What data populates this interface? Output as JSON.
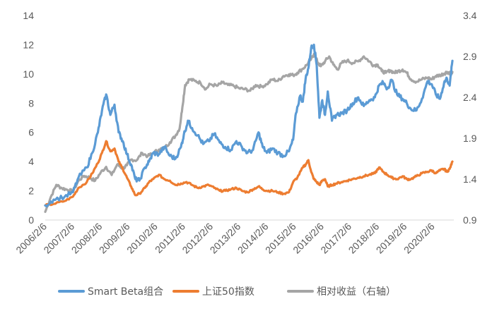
{
  "chart_data": {
    "type": "line",
    "x": [
      "2006/2/6",
      "2007/2/6",
      "2008/2/6",
      "2009/2/6",
      "2010/2/6",
      "2011/2/6",
      "2012/2/6",
      "2013/2/6",
      "2014/2/6",
      "2015/2/6",
      "2016/2/6",
      "2017/2/6",
      "2018/2/6",
      "2019/2/6",
      "2020/2/6"
    ],
    "left_axis": {
      "ylim": [
        0,
        14
      ],
      "ticks": [
        "0",
        "2",
        "4",
        "6",
        "8",
        "10",
        "12",
        "14"
      ]
    },
    "right_axis": {
      "ylim": [
        0.9,
        3.4
      ],
      "ticks": [
        "0.9",
        "1.4",
        "1.9",
        "2.4",
        "2.9",
        "3.4"
      ]
    },
    "grid": false,
    "legend_position": "bottom",
    "series": [
      {
        "name": "Smart Beta组合",
        "color": "#5B9BD5",
        "axis": "left",
        "points": [
          [
            2006.1,
            1.0
          ],
          [
            2006.4,
            1.4
          ],
          [
            2006.8,
            1.6
          ],
          [
            2007.1,
            1.9
          ],
          [
            2007.3,
            2.9
          ],
          [
            2007.6,
            3.6
          ],
          [
            2007.8,
            4.6
          ],
          [
            2008.0,
            6.0
          ],
          [
            2008.15,
            7.5
          ],
          [
            2008.3,
            8.6
          ],
          [
            2008.45,
            7.2
          ],
          [
            2008.6,
            7.9
          ],
          [
            2008.75,
            6.0
          ],
          [
            2008.9,
            5.4
          ],
          [
            2009.05,
            4.5
          ],
          [
            2009.2,
            3.8
          ],
          [
            2009.35,
            2.8
          ],
          [
            2009.5,
            2.7
          ],
          [
            2009.7,
            3.6
          ],
          [
            2009.85,
            4.0
          ],
          [
            2010.0,
            4.6
          ],
          [
            2010.2,
            4.5
          ],
          [
            2010.4,
            5.0
          ],
          [
            2010.6,
            4.4
          ],
          [
            2010.8,
            4.2
          ],
          [
            2011.0,
            5.0
          ],
          [
            2011.1,
            5.8
          ],
          [
            2011.25,
            6.8
          ],
          [
            2011.4,
            6.3
          ],
          [
            2011.6,
            5.8
          ],
          [
            2011.8,
            5.2
          ],
          [
            2012.0,
            5.4
          ],
          [
            2012.2,
            5.9
          ],
          [
            2012.4,
            5.3
          ],
          [
            2012.6,
            5.0
          ],
          [
            2012.8,
            4.8
          ],
          [
            2013.0,
            5.4
          ],
          [
            2013.2,
            5.0
          ],
          [
            2013.4,
            4.6
          ],
          [
            2013.6,
            4.8
          ],
          [
            2013.8,
            6.0
          ],
          [
            2013.95,
            5.0
          ],
          [
            2014.1,
            4.6
          ],
          [
            2014.3,
            4.9
          ],
          [
            2014.5,
            4.6
          ],
          [
            2014.7,
            4.4
          ],
          [
            2014.9,
            4.7
          ],
          [
            2015.05,
            5.5
          ],
          [
            2015.15,
            7.3
          ],
          [
            2015.3,
            8.5
          ],
          [
            2015.4,
            8.1
          ],
          [
            2015.5,
            9.7
          ],
          [
            2015.6,
            10.4
          ],
          [
            2015.7,
            11.8
          ],
          [
            2015.8,
            12.0
          ],
          [
            2015.9,
            10.6
          ],
          [
            2016.0,
            7.0
          ],
          [
            2016.1,
            8.2
          ],
          [
            2016.2,
            7.2
          ],
          [
            2016.3,
            8.8
          ],
          [
            2016.45,
            6.8
          ],
          [
            2016.6,
            7.2
          ],
          [
            2016.8,
            7.3
          ],
          [
            2017.0,
            7.5
          ],
          [
            2017.2,
            8.0
          ],
          [
            2017.4,
            8.4
          ],
          [
            2017.6,
            7.8
          ],
          [
            2017.8,
            8.2
          ],
          [
            2018.0,
            8.4
          ],
          [
            2018.15,
            9.2
          ],
          [
            2018.3,
            9.4
          ],
          [
            2018.45,
            9.0
          ],
          [
            2018.6,
            9.6
          ],
          [
            2018.8,
            8.6
          ],
          [
            2019.0,
            8.3
          ],
          [
            2019.15,
            8.0
          ],
          [
            2019.3,
            7.6
          ],
          [
            2019.5,
            7.5
          ],
          [
            2019.7,
            8.3
          ],
          [
            2019.9,
            9.5
          ],
          [
            2020.05,
            9.3
          ],
          [
            2020.2,
            8.6
          ],
          [
            2020.35,
            8.3
          ],
          [
            2020.5,
            9.4
          ],
          [
            2020.6,
            9.7
          ],
          [
            2020.7,
            9.2
          ],
          [
            2020.8,
            10.9
          ]
        ]
      },
      {
        "name": "上证50指数",
        "color": "#ED7D31",
        "axis": "left",
        "points": [
          [
            2006.1,
            1.0
          ],
          [
            2006.4,
            1.1
          ],
          [
            2006.8,
            1.3
          ],
          [
            2007.1,
            1.6
          ],
          [
            2007.3,
            2.2
          ],
          [
            2007.6,
            2.6
          ],
          [
            2007.8,
            3.2
          ],
          [
            2008.0,
            3.9
          ],
          [
            2008.15,
            4.6
          ],
          [
            2008.3,
            5.4
          ],
          [
            2008.45,
            4.7
          ],
          [
            2008.6,
            4.9
          ],
          [
            2008.75,
            4.0
          ],
          [
            2008.9,
            3.5
          ],
          [
            2009.05,
            2.9
          ],
          [
            2009.2,
            2.3
          ],
          [
            2009.35,
            1.7
          ],
          [
            2009.5,
            1.8
          ],
          [
            2009.7,
            2.2
          ],
          [
            2009.85,
            2.6
          ],
          [
            2010.0,
            2.8
          ],
          [
            2010.2,
            3.1
          ],
          [
            2010.4,
            2.8
          ],
          [
            2010.6,
            2.7
          ],
          [
            2010.8,
            2.4
          ],
          [
            2011.0,
            2.5
          ],
          [
            2011.2,
            2.6
          ],
          [
            2011.4,
            2.4
          ],
          [
            2011.6,
            2.2
          ],
          [
            2011.8,
            2.3
          ],
          [
            2012.0,
            2.4
          ],
          [
            2012.2,
            2.2
          ],
          [
            2012.4,
            2.0
          ],
          [
            2012.6,
            2.0
          ],
          [
            2012.8,
            2.1
          ],
          [
            2013.0,
            2.2
          ],
          [
            2013.2,
            2.0
          ],
          [
            2013.4,
            1.9
          ],
          [
            2013.6,
            2.1
          ],
          [
            2013.8,
            2.3
          ],
          [
            2013.95,
            2.1
          ],
          [
            2014.1,
            2.0
          ],
          [
            2014.3,
            2.0
          ],
          [
            2014.5,
            1.9
          ],
          [
            2014.7,
            1.8
          ],
          [
            2014.9,
            1.9
          ],
          [
            2015.05,
            2.6
          ],
          [
            2015.2,
            2.9
          ],
          [
            2015.4,
            3.6
          ],
          [
            2015.5,
            3.8
          ],
          [
            2015.6,
            4.1
          ],
          [
            2015.7,
            3.3
          ],
          [
            2015.8,
            2.8
          ],
          [
            2015.9,
            2.6
          ],
          [
            2016.0,
            2.4
          ],
          [
            2016.1,
            2.7
          ],
          [
            2016.2,
            2.8
          ],
          [
            2016.3,
            2.3
          ],
          [
            2016.45,
            2.4
          ],
          [
            2016.6,
            2.5
          ],
          [
            2016.8,
            2.6
          ],
          [
            2017.0,
            2.7
          ],
          [
            2017.2,
            2.8
          ],
          [
            2017.4,
            2.9
          ],
          [
            2017.6,
            3.0
          ],
          [
            2017.8,
            3.1
          ],
          [
            2018.0,
            3.2
          ],
          [
            2018.15,
            3.6
          ],
          [
            2018.3,
            3.3
          ],
          [
            2018.45,
            3.1
          ],
          [
            2018.6,
            2.9
          ],
          [
            2018.8,
            2.8
          ],
          [
            2019.0,
            3.0
          ],
          [
            2019.15,
            2.8
          ],
          [
            2019.3,
            2.8
          ],
          [
            2019.5,
            3.0
          ],
          [
            2019.7,
            3.2
          ],
          [
            2019.9,
            3.3
          ],
          [
            2020.05,
            3.4
          ],
          [
            2020.2,
            3.2
          ],
          [
            2020.35,
            3.4
          ],
          [
            2020.5,
            3.5
          ],
          [
            2020.6,
            3.3
          ],
          [
            2020.7,
            3.5
          ],
          [
            2020.8,
            4.0
          ]
        ]
      },
      {
        "name": "相对收益（右轴）",
        "color": "#A5A5A5",
        "axis": "right",
        "points": [
          [
            2006.1,
            1.0
          ],
          [
            2006.3,
            1.18
          ],
          [
            2006.5,
            1.33
          ],
          [
            2006.7,
            1.29
          ],
          [
            2006.9,
            1.27
          ],
          [
            2007.1,
            1.25
          ],
          [
            2007.3,
            1.38
          ],
          [
            2007.5,
            1.44
          ],
          [
            2007.7,
            1.42
          ],
          [
            2007.9,
            1.38
          ],
          [
            2008.1,
            1.48
          ],
          [
            2008.3,
            1.55
          ],
          [
            2008.5,
            1.45
          ],
          [
            2008.7,
            1.58
          ],
          [
            2008.9,
            1.53
          ],
          [
            2009.05,
            1.57
          ],
          [
            2009.2,
            1.64
          ],
          [
            2009.4,
            1.63
          ],
          [
            2009.6,
            1.72
          ],
          [
            2009.8,
            1.68
          ],
          [
            2010.0,
            1.72
          ],
          [
            2010.2,
            1.76
          ],
          [
            2010.4,
            1.78
          ],
          [
            2010.6,
            1.85
          ],
          [
            2010.8,
            1.93
          ],
          [
            2010.95,
            2.02
          ],
          [
            2011.05,
            2.28
          ],
          [
            2011.15,
            2.55
          ],
          [
            2011.3,
            2.62
          ],
          [
            2011.5,
            2.6
          ],
          [
            2011.7,
            2.58
          ],
          [
            2011.9,
            2.5
          ],
          [
            2012.05,
            2.56
          ],
          [
            2012.3,
            2.54
          ],
          [
            2012.5,
            2.58
          ],
          [
            2012.7,
            2.55
          ],
          [
            2012.9,
            2.54
          ],
          [
            2013.1,
            2.51
          ],
          [
            2013.3,
            2.5
          ],
          [
            2013.5,
            2.48
          ],
          [
            2013.7,
            2.55
          ],
          [
            2013.9,
            2.53
          ],
          [
            2014.1,
            2.56
          ],
          [
            2014.3,
            2.62
          ],
          [
            2014.5,
            2.6
          ],
          [
            2014.7,
            2.66
          ],
          [
            2014.9,
            2.68
          ],
          [
            2015.05,
            2.67
          ],
          [
            2015.2,
            2.7
          ],
          [
            2015.4,
            2.75
          ],
          [
            2015.55,
            2.8
          ],
          [
            2015.7,
            2.87
          ],
          [
            2015.8,
            2.93
          ],
          [
            2015.95,
            2.82
          ],
          [
            2016.05,
            2.78
          ],
          [
            2016.2,
            2.84
          ],
          [
            2016.35,
            2.9
          ],
          [
            2016.5,
            2.8
          ],
          [
            2016.65,
            2.74
          ],
          [
            2016.8,
            2.82
          ],
          [
            2017.0,
            2.85
          ],
          [
            2017.2,
            2.82
          ],
          [
            2017.4,
            2.84
          ],
          [
            2017.6,
            2.9
          ],
          [
            2017.8,
            2.84
          ],
          [
            2017.95,
            2.79
          ],
          [
            2018.1,
            2.8
          ],
          [
            2018.25,
            2.72
          ],
          [
            2018.4,
            2.7
          ],
          [
            2018.55,
            2.73
          ],
          [
            2018.7,
            2.7
          ],
          [
            2018.85,
            2.72
          ],
          [
            2019.0,
            2.74
          ],
          [
            2019.15,
            2.7
          ],
          [
            2019.3,
            2.62
          ],
          [
            2019.5,
            2.59
          ],
          [
            2019.7,
            2.62
          ],
          [
            2019.9,
            2.64
          ],
          [
            2020.05,
            2.62
          ],
          [
            2020.2,
            2.66
          ],
          [
            2020.35,
            2.67
          ],
          [
            2020.5,
            2.69
          ],
          [
            2020.6,
            2.71
          ],
          [
            2020.7,
            2.7
          ],
          [
            2020.8,
            2.71
          ]
        ]
      }
    ]
  }
}
